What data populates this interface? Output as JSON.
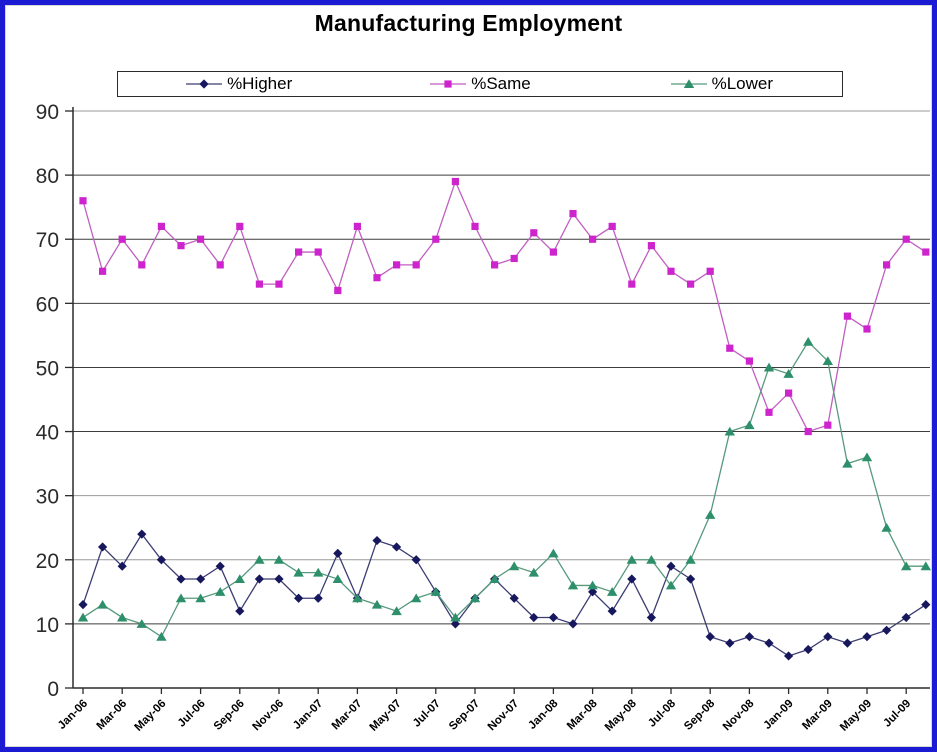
{
  "page": {
    "border_color": "#1b1bd4",
    "background": "#ffffff"
  },
  "title": "Manufacturing Employment",
  "legend": {
    "items": [
      "%Higher",
      "%Same",
      "%Lower"
    ]
  },
  "chart_data": {
    "type": "line",
    "title": "Manufacturing Employment",
    "xlabel": "",
    "ylabel": "",
    "ylim": [
      0,
      90
    ],
    "ytick_step": 10,
    "grid": true,
    "legend_position": "top",
    "axis_color": "#2b2b2b",
    "grid_color": "#3d3d3d",
    "grid_light_color": "#9a9a9a",
    "light_gridlines": [
      90,
      30,
      20
    ],
    "x_tick_labels": [
      "Jan-06",
      "Mar-06",
      "May-06",
      "Jul-06",
      "Sep-06",
      "Nov-06",
      "Jan-07",
      "Mar-07",
      "May-07",
      "Jul-07",
      "Sep-07",
      "Nov-07",
      "Jan-08",
      "Mar-08",
      "May-08",
      "Jul-08",
      "Sep-08",
      "Nov-08",
      "Jan-09",
      "Mar-09",
      "May-09",
      "Jul-09"
    ],
    "months": [
      "Jan-06",
      "Feb-06",
      "Mar-06",
      "Apr-06",
      "May-06",
      "Jun-06",
      "Jul-06",
      "Aug-06",
      "Sep-06",
      "Oct-06",
      "Nov-06",
      "Dec-06",
      "Jan-07",
      "Feb-07",
      "Mar-07",
      "Apr-07",
      "May-07",
      "Jun-07",
      "Jul-07",
      "Aug-07",
      "Sep-07",
      "Oct-07",
      "Nov-07",
      "Dec-07",
      "Jan-08",
      "Feb-08",
      "Mar-08",
      "Apr-08",
      "May-08",
      "Jun-08",
      "Jul-08",
      "Aug-08",
      "Sep-08",
      "Oct-08",
      "Nov-08",
      "Dec-08",
      "Jan-09",
      "Feb-09",
      "Mar-09",
      "Apr-09",
      "May-09",
      "Jun-09",
      "Jul-09",
      "Aug-09"
    ],
    "series": [
      {
        "name": "%Higher",
        "marker": "diamond",
        "color": "#17175e",
        "line_color": "#3c3c74",
        "values": [
          13,
          22,
          19,
          24,
          20,
          17,
          17,
          19,
          12,
          17,
          17,
          14,
          14,
          21,
          14,
          23,
          22,
          20,
          15,
          10,
          14,
          17,
          14,
          11,
          11,
          10,
          15,
          12,
          17,
          11,
          19,
          17,
          8,
          7,
          8,
          7,
          5,
          6,
          8,
          7,
          8,
          9,
          11,
          13
        ]
      },
      {
        "name": "%Same",
        "marker": "square",
        "color": "#ce24ce",
        "line_color": "#c05fc0",
        "values": [
          76,
          65,
          70,
          66,
          72,
          69,
          70,
          66,
          72,
          63,
          63,
          68,
          68,
          62,
          72,
          64,
          66,
          66,
          70,
          79,
          72,
          66,
          67,
          71,
          68,
          74,
          70,
          72,
          63,
          69,
          65,
          63,
          65,
          53,
          51,
          43,
          46,
          40,
          41,
          58,
          56,
          66,
          70,
          68
        ]
      },
      {
        "name": "%Lower",
        "marker": "triangle",
        "color": "#2e8f6b",
        "line_color": "#57997d",
        "values": [
          11,
          13,
          11,
          10,
          8,
          14,
          14,
          15,
          17,
          20,
          20,
          18,
          18,
          17,
          14,
          13,
          12,
          14,
          15,
          11,
          14,
          17,
          19,
          18,
          21,
          16,
          16,
          15,
          20,
          20,
          16,
          20,
          27,
          40,
          41,
          50,
          49,
          54,
          51,
          35,
          36,
          25,
          19,
          19
        ]
      }
    ]
  }
}
